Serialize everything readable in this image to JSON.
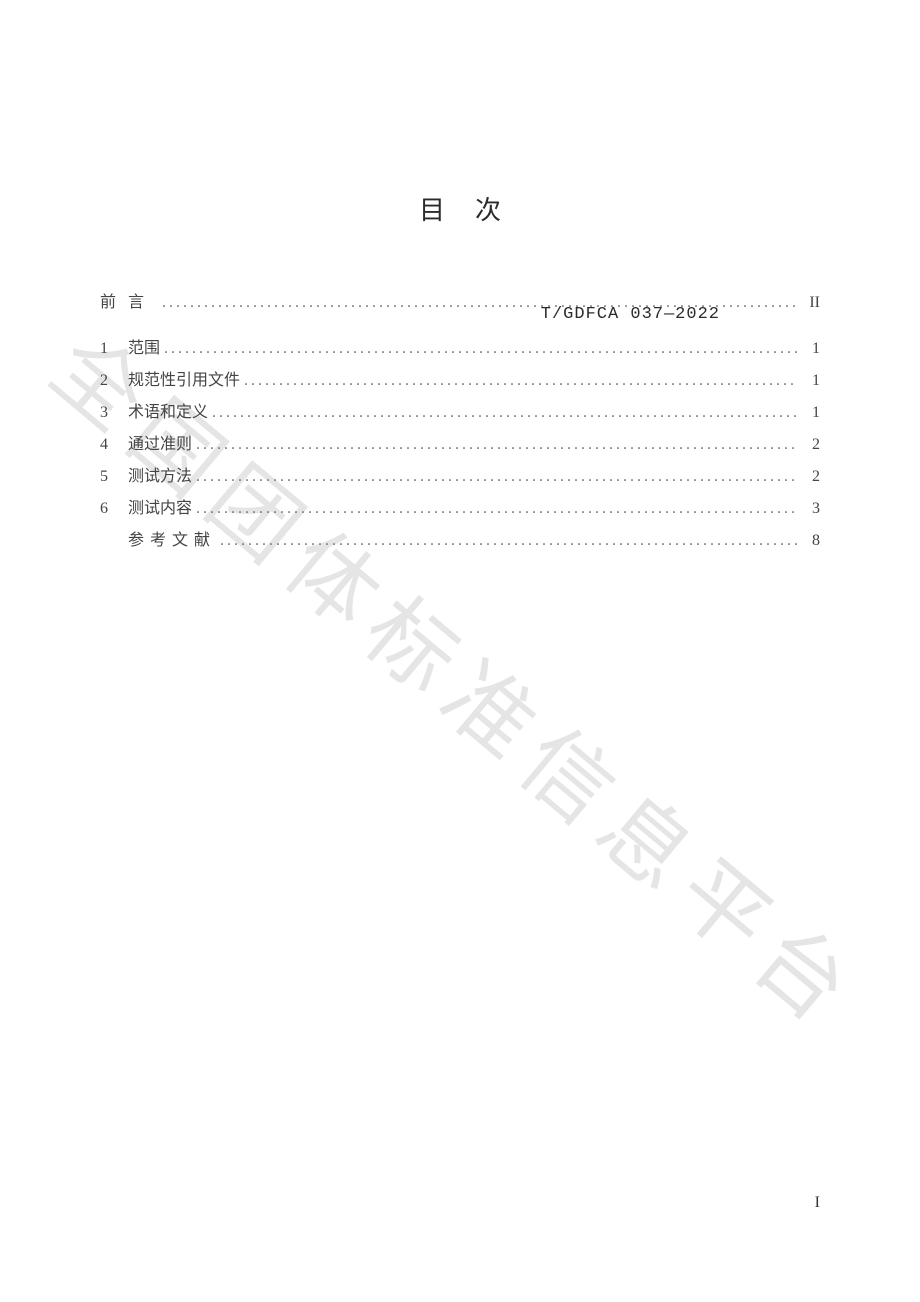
{
  "header": {
    "code": "T/GDFCA 037—2022"
  },
  "title": "目次",
  "watermark": "全国团体标准信息平台",
  "toc": [
    {
      "num": "前",
      "label": "言",
      "page": "II",
      "spaced": true,
      "first": true
    },
    {
      "num": "1",
      "label": "范围",
      "page": "1"
    },
    {
      "num": "2",
      "label": "规范性引用文件",
      "page": "1"
    },
    {
      "num": "3",
      "label": "术语和定义",
      "page": "1"
    },
    {
      "num": "4",
      "label": "通过准则",
      "page": "2"
    },
    {
      "num": "5",
      "label": "测试方法",
      "page": "2"
    },
    {
      "num": "6",
      "label": "测试内容",
      "page": "3"
    },
    {
      "num": "",
      "label": "参考文献",
      "page": "8",
      "spaced4": true
    }
  ],
  "pageNumber": "I",
  "colors": {
    "text": "#2b2b2b",
    "toc_text": "#444444",
    "dots": "#777777",
    "background": "#ffffff",
    "watermark": "rgba(160,160,160,0.28)"
  },
  "typography": {
    "title_fontsize_pt": 20,
    "body_fontsize_pt": 12,
    "header_fontsize_pt": 13,
    "watermark_fontsize_pt": 66
  }
}
